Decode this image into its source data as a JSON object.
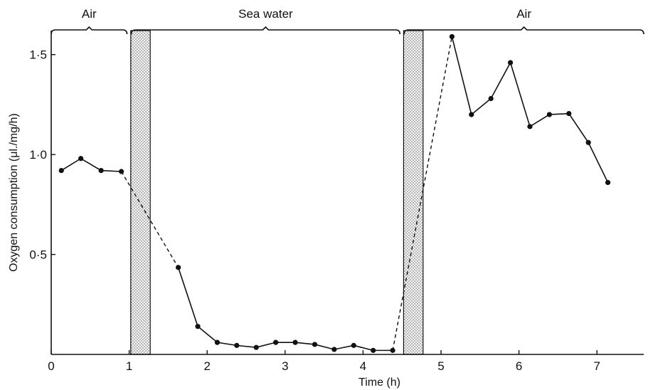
{
  "chart_data": {
    "type": "line",
    "xlabel": "Time (h)",
    "ylabel": "Oxygen consumption (μl./mg/h)",
    "xlim": [
      0,
      7.6
    ],
    "ylim": [
      0,
      1.62
    ],
    "x_ticks": [
      0,
      1,
      2,
      3,
      4,
      5,
      6,
      7
    ],
    "x_tick_labels": [
      "0",
      "1",
      "2",
      "3",
      "4",
      "5",
      "6",
      "7"
    ],
    "y_ticks": [
      0.5,
      1.0,
      1.5
    ],
    "y_tick_labels": [
      "0·5",
      "1·0",
      "1·5"
    ],
    "phases": [
      {
        "label": "Air",
        "start": 0,
        "end": 1.0
      },
      {
        "label": "Sea water",
        "start": 1.0,
        "end": 4.5
      },
      {
        "label": "Air",
        "start": 4.5,
        "end": 7.6
      }
    ],
    "transfer_bands": [
      {
        "start": 1.02,
        "end": 1.27
      },
      {
        "start": 4.52,
        "end": 4.77
      }
    ],
    "series": [
      {
        "x": [
          0.13,
          0.38,
          0.64,
          0.9
        ],
        "y": [
          0.92,
          0.98,
          0.92,
          0.915
        ],
        "style": "solid"
      },
      {
        "x": [
          0.9,
          1.63
        ],
        "y": [
          0.915,
          0.435
        ],
        "style": "dashed"
      },
      {
        "x": [
          1.63,
          1.88,
          2.13,
          2.38,
          2.63,
          2.88,
          3.13,
          3.38,
          3.63,
          3.88,
          4.13,
          4.38
        ],
        "y": [
          0.435,
          0.14,
          0.06,
          0.045,
          0.035,
          0.06,
          0.06,
          0.05,
          0.025,
          0.045,
          0.02,
          0.02
        ],
        "style": "solid"
      },
      {
        "x": [
          4.38,
          5.14
        ],
        "y": [
          0.02,
          1.59
        ],
        "style": "dashed"
      },
      {
        "x": [
          5.14,
          5.39,
          5.64,
          5.89,
          6.14,
          6.39,
          6.64,
          6.89,
          7.14
        ],
        "y": [
          1.59,
          1.2,
          1.28,
          1.46,
          1.14,
          1.2,
          1.205,
          1.06,
          0.86
        ],
        "style": "solid"
      }
    ]
  }
}
